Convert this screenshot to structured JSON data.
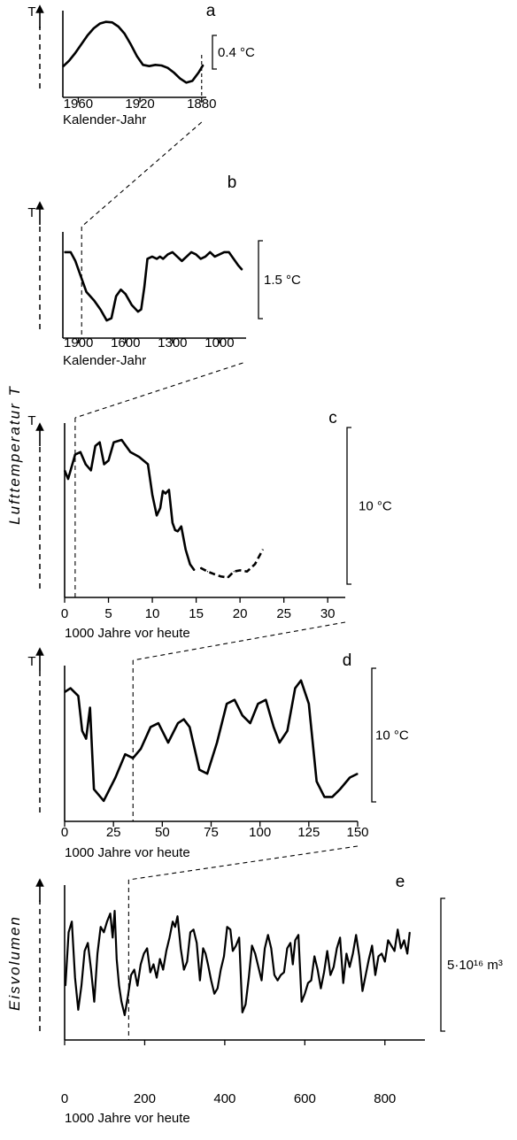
{
  "side_label": "Lufttemperatur T",
  "chart_data": [
    {
      "type": "line",
      "panel_label": "a",
      "ylabel": "T",
      "xlabel": "Kalender-Jahr",
      "x_reversed": true,
      "xlim": [
        1970,
        1877
      ],
      "ticks": [
        1960,
        1920,
        1880
      ],
      "tick_labels": [
        "1960",
        "1920",
        "1880"
      ],
      "scale_bar": "0.4 °C",
      "x": [
        1970,
        1966,
        1962,
        1958,
        1954,
        1950,
        1946,
        1942,
        1938,
        1934,
        1930,
        1926,
        1922,
        1918,
        1914,
        1910,
        1906,
        1902,
        1898,
        1894,
        1890,
        1886,
        1882,
        1879
      ],
      "values": [
        0.02,
        0.12,
        0.25,
        0.4,
        0.55,
        0.67,
        0.75,
        0.78,
        0.77,
        0.7,
        0.58,
        0.4,
        0.2,
        0.05,
        0.03,
        0.05,
        0.04,
        0.0,
        -0.08,
        -0.18,
        -0.25,
        -0.22,
        -0.08,
        0.05
      ]
    },
    {
      "type": "line",
      "panel_label": "b",
      "ylabel": "T",
      "xlabel": "Kalender-Jahr",
      "x_reversed": true,
      "xlim": [
        2000,
        830
      ],
      "ticks": [
        1900,
        1600,
        1300,
        1000
      ],
      "tick_labels": [
        "1900",
        "1600",
        "1300",
        "1000"
      ],
      "scale_bar": "1.5 °C",
      "x": [
        1990,
        1950,
        1920,
        1880,
        1850,
        1800,
        1760,
        1720,
        1690,
        1660,
        1630,
        1600,
        1560,
        1520,
        1500,
        1480,
        1460,
        1430,
        1400,
        1380,
        1360,
        1330,
        1300,
        1270,
        1240,
        1210,
        1180,
        1150,
        1120,
        1090,
        1060,
        1030,
        1000,
        970,
        940,
        910,
        880,
        855
      ],
      "values": [
        1.3,
        1.3,
        1.1,
        0.7,
        0.4,
        0.2,
        0.0,
        -0.25,
        -0.2,
        0.3,
        0.45,
        0.35,
        0.1,
        -0.05,
        0.0,
        0.5,
        1.15,
        1.2,
        1.15,
        1.2,
        1.15,
        1.25,
        1.3,
        1.2,
        1.1,
        1.2,
        1.3,
        1.25,
        1.15,
        1.2,
        1.3,
        1.2,
        1.25,
        1.3,
        1.3,
        1.15,
        1.0,
        0.9
      ]
    },
    {
      "type": "line",
      "panel_label": "c",
      "ylabel": "T",
      "xlabel": "1000 Jahre vor heute",
      "x_reversed": false,
      "xlim": [
        0,
        32
      ],
      "ticks": [
        0,
        5,
        10,
        15,
        20,
        25,
        30
      ],
      "tick_labels": [
        "0",
        "5",
        "10",
        "15",
        "20",
        "25",
        "30"
      ],
      "scale_bar": "10 °C",
      "x": [
        0,
        0.4,
        0.8,
        1.2,
        1.8,
        2.4,
        3.0,
        3.5,
        4.0,
        4.5,
        5.0,
        5.6,
        6.5,
        7.5,
        8.5,
        9.5,
        10.0,
        10.5,
        10.9,
        11.2,
        11.5,
        11.9,
        12.3,
        12.6,
        12.9,
        13.3,
        13.8,
        14.3,
        14.8,
        15.5,
        16.3,
        17.0,
        17.8,
        18.6,
        19.3,
        20.0,
        20.8,
        21.7,
        22.6
      ],
      "values": [
        8.5,
        7.8,
        8.8,
        9.8,
        10.0,
        9.0,
        8.5,
        10.5,
        10.8,
        9.0,
        9.3,
        10.8,
        11.0,
        10.0,
        9.6,
        9.0,
        6.5,
        4.8,
        5.4,
        6.8,
        6.6,
        6.9,
        4.2,
        3.6,
        3.5,
        3.9,
        2.0,
        0.8,
        0.3,
        0.5,
        0.2,
        0.0,
        -0.2,
        -0.3,
        0.2,
        0.3,
        0.2,
        0.8,
        2.0
      ],
      "dashed_from_x": 15.0
    },
    {
      "type": "line",
      "panel_label": "d",
      "ylabel": "T",
      "xlabel": "1000 Jahre vor heute",
      "x_reversed": false,
      "xlim": [
        0,
        150
      ],
      "ticks": [
        0,
        25,
        50,
        75,
        100,
        125,
        150
      ],
      "tick_labels": [
        "0",
        "25",
        "50",
        "75",
        "100",
        "125",
        "150"
      ],
      "scale_bar": "10 °C",
      "x": [
        0,
        3,
        7,
        9,
        11,
        13,
        15,
        20,
        26,
        31,
        35,
        39,
        44,
        48,
        53,
        58,
        61,
        64,
        69,
        73,
        78,
        83,
        87,
        91,
        95,
        99,
        103,
        107,
        110,
        114,
        118,
        121,
        125,
        129,
        133,
        137,
        141,
        146,
        150
      ],
      "values": [
        14.5,
        15.0,
        14.0,
        9.5,
        8.5,
        12.5,
        2.0,
        0.5,
        3.5,
        6.5,
        6.0,
        7.2,
        10.0,
        10.5,
        8.0,
        10.5,
        11.0,
        10.0,
        4.5,
        4.0,
        8.0,
        13.0,
        13.5,
        11.5,
        10.5,
        13.0,
        13.5,
        10.0,
        8.0,
        9.5,
        15.0,
        16.0,
        13.0,
        3.0,
        1.0,
        1.0,
        2.0,
        3.5,
        4.0
      ]
    },
    {
      "type": "line",
      "panel_label": "e",
      "ylabel": "Eisvolumen",
      "xlabel": "1000 Jahre vor heute",
      "x_reversed": false,
      "xlim": [
        0,
        900
      ],
      "ticks": [
        0,
        200,
        400,
        600,
        800
      ],
      "tick_labels": [
        "0",
        "200",
        "400",
        "600",
        "800"
      ],
      "scale_bar": "5·10¹⁶ m³",
      "x": [
        2,
        10,
        18,
        26,
        34,
        42,
        50,
        58,
        66,
        74,
        82,
        90,
        98,
        106,
        114,
        120,
        125,
        130,
        136,
        142,
        150,
        158,
        166,
        174,
        182,
        190,
        198,
        206,
        214,
        222,
        230,
        238,
        246,
        254,
        262,
        270,
        276,
        282,
        290,
        298,
        306,
        314,
        322,
        330,
        338,
        346,
        352,
        358,
        366,
        374,
        382,
        390,
        398,
        406,
        414,
        420,
        428,
        436,
        444,
        452,
        460,
        468,
        476,
        484,
        492,
        500,
        508,
        516,
        524,
        532,
        540,
        548,
        556,
        564,
        570,
        576,
        584,
        592,
        600,
        608,
        616,
        624,
        632,
        640,
        648,
        656,
        664,
        672,
        680,
        688,
        696,
        704,
        712,
        720,
        728,
        736,
        744,
        752,
        760,
        768,
        776,
        784,
        792,
        800,
        808,
        816,
        824,
        832,
        840,
        848,
        856,
        862
      ],
      "values": [
        1.2,
        3.2,
        3.6,
        1.5,
        0.3,
        1.2,
        2.5,
        2.8,
        1.8,
        0.6,
        2.4,
        3.4,
        3.2,
        3.6,
        3.9,
        3.0,
        4.0,
        2.2,
        1.2,
        0.6,
        0.1,
        0.8,
        1.6,
        1.8,
        1.2,
        2.0,
        2.4,
        2.6,
        1.7,
        2.0,
        1.5,
        2.2,
        1.8,
        2.5,
        3.0,
        3.6,
        3.4,
        3.8,
        2.6,
        1.8,
        2.1,
        3.2,
        3.3,
        2.8,
        1.4,
        2.6,
        2.4,
        2.0,
        1.4,
        0.9,
        1.1,
        1.8,
        2.3,
        3.4,
        3.3,
        2.5,
        2.7,
        3.0,
        0.2,
        0.5,
        1.5,
        2.7,
        2.4,
        1.9,
        1.4,
        2.6,
        3.1,
        2.6,
        1.6,
        1.4,
        1.6,
        1.7,
        2.6,
        2.8,
        2.0,
        2.9,
        3.1,
        0.6,
        0.9,
        1.3,
        1.4,
        2.3,
        1.8,
        1.1,
        1.7,
        2.5,
        1.6,
        1.9,
        2.6,
        3.0,
        1.3,
        2.4,
        1.9,
        2.4,
        3.1,
        2.3,
        1.0,
        1.6,
        2.2,
        2.7,
        1.6,
        2.3,
        2.4,
        2.1,
        2.9,
        2.7,
        2.5,
        3.3,
        2.6,
        2.9,
        2.4,
        3.2
      ]
    }
  ]
}
